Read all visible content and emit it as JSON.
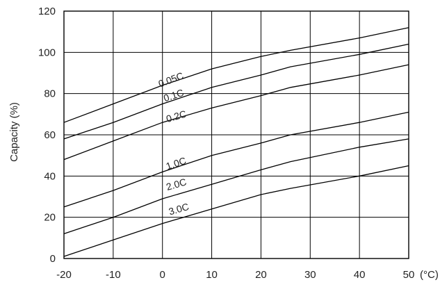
{
  "chart_data": {
    "type": "line",
    "ylabel": "Capacity (%)",
    "xlabel": "",
    "x_unit": "(°C)",
    "xlim": [
      -20,
      50
    ],
    "ylim": [
      0,
      120
    ],
    "x_ticks": [
      -20,
      -10,
      0,
      10,
      20,
      30,
      40,
      50
    ],
    "x_tick_labels": [
      "-20",
      "-10",
      "0",
      "10",
      "20",
      "30",
      "40",
      "50"
    ],
    "y_ticks": [
      0,
      20,
      40,
      60,
      80,
      100,
      120
    ],
    "y_tick_labels": [
      "0",
      "20",
      "40",
      "60",
      "80",
      "100",
      "120"
    ],
    "grid": true,
    "series": [
      {
        "name": "0.05C",
        "x": [
          -20,
          -10,
          0,
          10,
          20,
          26,
          40,
          50
        ],
        "values": [
          66,
          75,
          84,
          92,
          98,
          101,
          107,
          112
        ],
        "label_at": [
          -0.5,
          83
        ]
      },
      {
        "name": "0.1C",
        "x": [
          -20,
          -10,
          0,
          10,
          20,
          26,
          40,
          50
        ],
        "values": [
          58,
          66,
          75,
          83,
          89,
          93,
          99,
          104
        ],
        "label_at": [
          0.5,
          76
        ]
      },
      {
        "name": "0.2C",
        "x": [
          -20,
          -10,
          0,
          10,
          20,
          26,
          40,
          50
        ],
        "values": [
          48,
          57,
          66,
          73,
          79,
          83,
          89,
          94
        ],
        "label_at": [
          1,
          66
        ]
      },
      {
        "name": "1.0C",
        "x": [
          -20,
          -10,
          0,
          10,
          20,
          26,
          40,
          50
        ],
        "values": [
          25,
          33,
          42,
          50,
          56,
          60,
          66,
          71
        ],
        "label_at": [
          1,
          43
        ]
      },
      {
        "name": "2.0C",
        "x": [
          -20,
          -10,
          0,
          10,
          20,
          26,
          40,
          50
        ],
        "values": [
          12,
          20,
          29,
          36,
          43,
          47,
          54,
          58
        ],
        "label_at": [
          1,
          33
        ]
      },
      {
        "name": "3.0C",
        "x": [
          -20,
          -10,
          0,
          10,
          20,
          26,
          40,
          50
        ],
        "values": [
          1,
          9,
          17,
          24,
          31,
          34,
          40,
          45
        ],
        "label_at": [
          1.5,
          21
        ]
      }
    ]
  }
}
